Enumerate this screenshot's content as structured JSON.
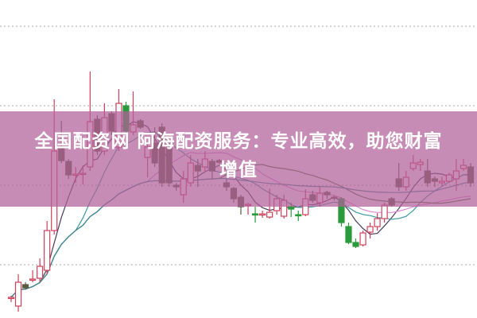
{
  "banner": {
    "line1": "全国配资网 阿海配资服务：专业高效，助您财富",
    "line2": "增值"
  },
  "chart_data": {
    "type": "candlestick",
    "title": "",
    "xlabel": "",
    "ylabel": "",
    "ylim": [
      0,
      400
    ],
    "grid": true,
    "gridlines": [
      367,
      267,
      167,
      67
    ],
    "colors": {
      "up": "#d0405a",
      "down": "#5a5a40",
      "down_alt": "#2a9a3a",
      "banner": "#b26098"
    },
    "moving_average_periods": [
      5,
      10,
      20,
      30,
      60
    ],
    "moving_average_colors": [
      "#4a3a5a",
      "#3a9aa0",
      "#e08ad8",
      "#4a7a3a",
      "#3a8a9a"
    ],
    "candles": [
      {
        "o": 25,
        "c": 26,
        "h": 28,
        "l": 20
      },
      {
        "o": 15,
        "c": 45,
        "h": 55,
        "l": 8
      },
      {
        "o": 42,
        "c": 38,
        "h": 45,
        "l": 36
      },
      {
        "o": 48,
        "c": 49,
        "h": 60,
        "l": 45
      },
      {
        "o": 50,
        "c": 65,
        "h": 75,
        "l": 45
      },
      {
        "o": 60,
        "c": 110,
        "h": 122,
        "l": 55
      },
      {
        "o": 110,
        "c": 210,
        "h": 275,
        "l": 105
      },
      {
        "o": 213,
        "c": 198,
        "h": 248,
        "l": 195
      },
      {
        "o": 197,
        "c": 180,
        "h": 200,
        "l": 175
      },
      {
        "o": 180,
        "c": 181,
        "h": 190,
        "l": 170
      },
      {
        "o": 181,
        "c": 182,
        "h": 192,
        "l": 168
      },
      {
        "o": 190,
        "c": 247,
        "h": 310,
        "l": 185
      },
      {
        "o": 250,
        "c": 210,
        "h": 255,
        "l": 205
      },
      {
        "o": 210,
        "c": 252,
        "h": 270,
        "l": 205
      },
      {
        "o": 257,
        "c": 235,
        "h": 260,
        "l": 230
      },
      {
        "o": 215,
        "c": 270,
        "h": 288,
        "l": 210
      },
      {
        "o": 267,
        "c": 235,
        "h": 272,
        "l": 232,
        "green": true
      },
      {
        "o": 234,
        "c": 243,
        "h": 285,
        "l": 230
      },
      {
        "o": 248,
        "c": 240,
        "h": 250,
        "l": 238
      },
      {
        "o": 202,
        "c": 215,
        "h": 220,
        "l": 177
      },
      {
        "o": 220,
        "c": 195,
        "h": 240,
        "l": 190
      },
      {
        "o": 240,
        "c": 170,
        "h": 245,
        "l": 165
      },
      {
        "o": 217,
        "c": 170,
        "h": 220,
        "l": 165
      },
      {
        "o": 167,
        "c": 165,
        "h": 170,
        "l": 160
      },
      {
        "o": 155,
        "c": 175,
        "h": 185,
        "l": 145
      },
      {
        "o": 170,
        "c": 195,
        "h": 205,
        "l": 165
      },
      {
        "o": 192,
        "c": 185,
        "h": 200,
        "l": 165
      },
      {
        "o": 190,
        "c": 200,
        "h": 210,
        "l": 185
      },
      {
        "o": 197,
        "c": 185,
        "h": 200,
        "l": 175
      },
      {
        "o": 198,
        "c": 196,
        "h": 200,
        "l": 194
      },
      {
        "o": 170,
        "c": 165,
        "h": 175,
        "l": 160
      },
      {
        "o": 163,
        "c": 150,
        "h": 165,
        "l": 145
      },
      {
        "o": 152,
        "c": 140,
        "h": 155,
        "l": 130
      },
      {
        "o": 142,
        "c": 143,
        "h": 145,
        "l": 130
      },
      {
        "o": 131,
        "c": 130,
        "h": 140,
        "l": 120,
        "green": true
      },
      {
        "o": 130,
        "c": 131,
        "h": 135,
        "l": 126
      },
      {
        "o": 127,
        "c": 133,
        "h": 163,
        "l": 125
      },
      {
        "o": 135,
        "c": 150,
        "h": 155,
        "l": 130
      },
      {
        "o": 128,
        "c": 148,
        "h": 155,
        "l": 125
      },
      {
        "o": 140,
        "c": 137,
        "h": 145,
        "l": 127,
        "green": true
      },
      {
        "o": 130,
        "c": 129,
        "h": 135,
        "l": 122,
        "green": true
      },
      {
        "o": 130,
        "c": 150,
        "h": 162,
        "l": 128
      },
      {
        "o": 155,
        "c": 148,
        "h": 160,
        "l": 145
      },
      {
        "o": 145,
        "c": 157,
        "h": 165,
        "l": 140
      },
      {
        "o": 158,
        "c": 155,
        "h": 160,
        "l": 150
      },
      {
        "o": 152,
        "c": 151,
        "h": 154,
        "l": 148
      },
      {
        "o": 150,
        "c": 120,
        "h": 152,
        "l": 115,
        "green": true
      },
      {
        "o": 115,
        "c": 95,
        "h": 120,
        "l": 93,
        "green": true
      },
      {
        "o": 95,
        "c": 90,
        "h": 100,
        "l": 88,
        "green": true
      },
      {
        "o": 92,
        "c": 107,
        "h": 110,
        "l": 90
      },
      {
        "o": 108,
        "c": 115,
        "h": 120,
        "l": 100
      },
      {
        "o": 115,
        "c": 125,
        "h": 132,
        "l": 110
      },
      {
        "o": 125,
        "c": 142,
        "h": 145,
        "l": 120
      },
      {
        "o": 150,
        "c": 142,
        "h": 152,
        "l": 140
      },
      {
        "o": 175,
        "c": 165,
        "h": 195,
        "l": 160
      },
      {
        "o": 165,
        "c": 177,
        "h": 185,
        "l": 160
      },
      {
        "o": 188,
        "c": 195,
        "h": 205,
        "l": 185
      },
      {
        "o": 193,
        "c": 196,
        "h": 200,
        "l": 185
      },
      {
        "o": 185,
        "c": 170,
        "h": 200,
        "l": 165
      },
      {
        "o": 175,
        "c": 172,
        "h": 178,
        "l": 165
      },
      {
        "o": 170,
        "c": 172,
        "h": 178,
        "l": 165
      },
      {
        "o": 172,
        "c": 180,
        "h": 183,
        "l": 170
      },
      {
        "o": 175,
        "c": 185,
        "h": 200,
        "l": 160
      },
      {
        "o": 188,
        "c": 192,
        "h": 200,
        "l": 185
      },
      {
        "o": 190,
        "c": 170,
        "h": 195,
        "l": 165
      }
    ]
  }
}
